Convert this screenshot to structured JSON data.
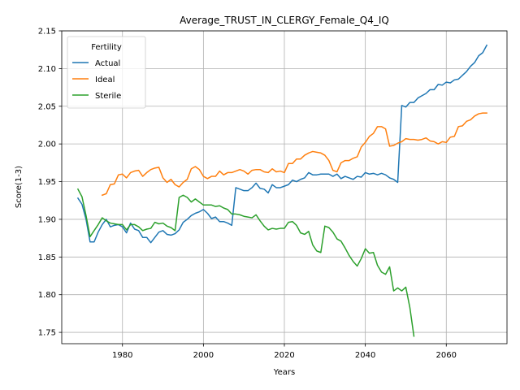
{
  "chart_data": {
    "type": "line",
    "title": "Average_TRUST_IN_CLERGY_Female_Q4_IQ",
    "xlabel": "Years",
    "ylabel": "Score(1-3)",
    "xlim": [
      1965,
      2075
    ],
    "ylim": [
      1.735,
      2.15
    ],
    "xticks": [
      1980,
      2000,
      2020,
      2040,
      2060
    ],
    "yticks": [
      1.75,
      1.8,
      1.85,
      1.9,
      1.95,
      2.0,
      2.05,
      2.1,
      2.15
    ],
    "xtick_labels": [
      "1980",
      "2000",
      "2020",
      "2040",
      "2060"
    ],
    "ytick_labels": [
      "1.75",
      "1.80",
      "1.85",
      "1.90",
      "1.95",
      "2.00",
      "2.05",
      "2.10",
      "2.15"
    ],
    "grid": true,
    "legend": {
      "title": "Fertility",
      "placement": "upper-left"
    },
    "series": [
      {
        "name": "Actual",
        "color": "#1f77b4",
        "points": [
          [
            1969,
            1.928
          ],
          [
            1970,
            1.92
          ],
          [
            1971,
            1.9
          ],
          [
            1972,
            1.87
          ],
          [
            1973,
            1.87
          ],
          [
            1974,
            1.883
          ],
          [
            1975,
            1.893
          ],
          [
            1976,
            1.9
          ],
          [
            1977,
            1.89
          ],
          [
            1978,
            1.892
          ],
          [
            1979,
            1.893
          ],
          [
            1980,
            1.89
          ],
          [
            1981,
            1.882
          ],
          [
            1982,
            1.895
          ],
          [
            1983,
            1.887
          ],
          [
            1984,
            1.885
          ],
          [
            1985,
            1.876
          ],
          [
            1986,
            1.876
          ],
          [
            1987,
            1.869
          ],
          [
            1988,
            1.876
          ],
          [
            1989,
            1.883
          ],
          [
            1990,
            1.885
          ],
          [
            1991,
            1.88
          ],
          [
            1992,
            1.879
          ],
          [
            1993,
            1.881
          ],
          [
            1994,
            1.886
          ],
          [
            1995,
            1.896
          ],
          [
            1996,
            1.9
          ],
          [
            1997,
            1.905
          ],
          [
            1998,
            1.908
          ],
          [
            1999,
            1.91
          ],
          [
            2000,
            1.913
          ],
          [
            2001,
            1.908
          ],
          [
            2002,
            1.901
          ],
          [
            2003,
            1.903
          ],
          [
            2004,
            1.897
          ],
          [
            2005,
            1.897
          ],
          [
            2006,
            1.895
          ],
          [
            2007,
            1.892
          ],
          [
            2008,
            1.942
          ],
          [
            2009,
            1.94
          ],
          [
            2010,
            1.938
          ],
          [
            2011,
            1.938
          ],
          [
            2012,
            1.942
          ],
          [
            2013,
            1.948
          ],
          [
            2014,
            1.941
          ],
          [
            2015,
            1.94
          ],
          [
            2016,
            1.935
          ],
          [
            2017,
            1.946
          ],
          [
            2018,
            1.942
          ],
          [
            2019,
            1.942
          ],
          [
            2020,
            1.944
          ],
          [
            2021,
            1.946
          ],
          [
            2022,
            1.952
          ],
          [
            2023,
            1.95
          ],
          [
            2024,
            1.953
          ],
          [
            2025,
            1.955
          ],
          [
            2026,
            1.962
          ],
          [
            2027,
            1.959
          ],
          [
            2028,
            1.959
          ],
          [
            2029,
            1.96
          ],
          [
            2030,
            1.96
          ],
          [
            2031,
            1.96
          ],
          [
            2032,
            1.957
          ],
          [
            2033,
            1.96
          ],
          [
            2034,
            1.954
          ],
          [
            2035,
            1.957
          ],
          [
            2036,
            1.955
          ],
          [
            2037,
            1.953
          ],
          [
            2038,
            1.957
          ],
          [
            2039,
            1.956
          ],
          [
            2040,
            1.962
          ],
          [
            2041,
            1.96
          ],
          [
            2042,
            1.961
          ],
          [
            2043,
            1.959
          ],
          [
            2044,
            1.961
          ],
          [
            2045,
            1.959
          ],
          [
            2046,
            1.955
          ],
          [
            2047,
            1.953
          ],
          [
            2048,
            1.949
          ],
          [
            2049,
            2.051
          ],
          [
            2050,
            2.049
          ],
          [
            2051,
            2.055
          ],
          [
            2052,
            2.055
          ],
          [
            2053,
            2.061
          ],
          [
            2054,
            2.064
          ],
          [
            2055,
            2.067
          ],
          [
            2056,
            2.072
          ],
          [
            2057,
            2.072
          ],
          [
            2058,
            2.079
          ],
          [
            2059,
            2.078
          ],
          [
            2060,
            2.082
          ],
          [
            2061,
            2.081
          ],
          [
            2062,
            2.085
          ],
          [
            2063,
            2.086
          ],
          [
            2064,
            2.091
          ],
          [
            2065,
            2.096
          ],
          [
            2066,
            2.103
          ],
          [
            2067,
            2.108
          ],
          [
            2068,
            2.117
          ],
          [
            2069,
            2.121
          ],
          [
            2070,
            2.131
          ]
        ]
      },
      {
        "name": "Ideal",
        "color": "#ff7f0e",
        "points": [
          [
            1975,
            1.932
          ],
          [
            1976,
            1.934
          ],
          [
            1977,
            1.946
          ],
          [
            1978,
            1.947
          ],
          [
            1979,
            1.959
          ],
          [
            1980,
            1.96
          ],
          [
            1981,
            1.955
          ],
          [
            1982,
            1.962
          ],
          [
            1983,
            1.964
          ],
          [
            1984,
            1.965
          ],
          [
            1985,
            1.957
          ],
          [
            1986,
            1.962
          ],
          [
            1987,
            1.966
          ],
          [
            1988,
            1.968
          ],
          [
            1989,
            1.969
          ],
          [
            1990,
            1.955
          ],
          [
            1991,
            1.949
          ],
          [
            1992,
            1.953
          ],
          [
            1993,
            1.946
          ],
          [
            1994,
            1.943
          ],
          [
            1995,
            1.949
          ],
          [
            1996,
            1.953
          ],
          [
            1997,
            1.967
          ],
          [
            1998,
            1.97
          ],
          [
            1999,
            1.966
          ],
          [
            2000,
            1.957
          ],
          [
            2001,
            1.954
          ],
          [
            2002,
            1.957
          ],
          [
            2003,
            1.957
          ],
          [
            2004,
            1.964
          ],
          [
            2005,
            1.959
          ],
          [
            2006,
            1.962
          ],
          [
            2007,
            1.962
          ],
          [
            2008,
            1.964
          ],
          [
            2009,
            1.966
          ],
          [
            2010,
            1.964
          ],
          [
            2011,
            1.96
          ],
          [
            2012,
            1.965
          ],
          [
            2013,
            1.966
          ],
          [
            2014,
            1.966
          ],
          [
            2015,
            1.963
          ],
          [
            2016,
            1.962
          ],
          [
            2017,
            1.967
          ],
          [
            2018,
            1.963
          ],
          [
            2019,
            1.964
          ],
          [
            2020,
            1.962
          ],
          [
            2021,
            1.974
          ],
          [
            2022,
            1.974
          ],
          [
            2023,
            1.98
          ],
          [
            2024,
            1.98
          ],
          [
            2025,
            1.985
          ],
          [
            2026,
            1.988
          ],
          [
            2027,
            1.99
          ],
          [
            2028,
            1.989
          ],
          [
            2029,
            1.988
          ],
          [
            2030,
            1.985
          ],
          [
            2031,
            1.978
          ],
          [
            2032,
            1.965
          ],
          [
            2033,
            1.963
          ],
          [
            2034,
            1.975
          ],
          [
            2035,
            1.978
          ],
          [
            2036,
            1.978
          ],
          [
            2037,
            1.981
          ],
          [
            2038,
            1.983
          ],
          [
            2039,
            1.996
          ],
          [
            2040,
            2.002
          ],
          [
            2041,
            2.01
          ],
          [
            2042,
            2.014
          ],
          [
            2043,
            2.023
          ],
          [
            2044,
            2.023
          ],
          [
            2045,
            2.02
          ],
          [
            2046,
            1.997
          ],
          [
            2047,
            1.998
          ],
          [
            2048,
            2.001
          ],
          [
            2049,
            2.003
          ],
          [
            2050,
            2.007
          ],
          [
            2051,
            2.006
          ],
          [
            2052,
            2.006
          ],
          [
            2053,
            2.005
          ],
          [
            2054,
            2.006
          ],
          [
            2055,
            2.008
          ],
          [
            2056,
            2.004
          ],
          [
            2057,
            2.003
          ],
          [
            2058,
            2.0
          ],
          [
            2059,
            2.003
          ],
          [
            2060,
            2.002
          ],
          [
            2061,
            2.009
          ],
          [
            2062,
            2.01
          ],
          [
            2063,
            2.023
          ],
          [
            2064,
            2.024
          ],
          [
            2065,
            2.03
          ],
          [
            2066,
            2.032
          ],
          [
            2067,
            2.037
          ],
          [
            2068,
            2.04
          ],
          [
            2069,
            2.041
          ],
          [
            2070,
            2.041
          ]
        ]
      },
      {
        "name": "Sterile",
        "color": "#2ca02c",
        "points": [
          [
            1969,
            1.94
          ],
          [
            1970,
            1.93
          ],
          [
            1971,
            1.905
          ],
          [
            1972,
            1.877
          ],
          [
            1973,
            1.885
          ],
          [
            1974,
            1.893
          ],
          [
            1975,
            1.902
          ],
          [
            1976,
            1.898
          ],
          [
            1977,
            1.895
          ],
          [
            1978,
            1.894
          ],
          [
            1979,
            1.893
          ],
          [
            1980,
            1.893
          ],
          [
            1981,
            1.886
          ],
          [
            1982,
            1.893
          ],
          [
            1983,
            1.893
          ],
          [
            1984,
            1.89
          ],
          [
            1985,
            1.885
          ],
          [
            1986,
            1.887
          ],
          [
            1987,
            1.888
          ],
          [
            1988,
            1.896
          ],
          [
            1989,
            1.894
          ],
          [
            1990,
            1.895
          ],
          [
            1991,
            1.891
          ],
          [
            1992,
            1.889
          ],
          [
            1993,
            1.885
          ],
          [
            1994,
            1.929
          ],
          [
            1995,
            1.932
          ],
          [
            1996,
            1.929
          ],
          [
            1997,
            1.923
          ],
          [
            1998,
            1.927
          ],
          [
            1999,
            1.923
          ],
          [
            2000,
            1.919
          ],
          [
            2001,
            1.919
          ],
          [
            2002,
            1.919
          ],
          [
            2003,
            1.917
          ],
          [
            2004,
            1.918
          ],
          [
            2005,
            1.915
          ],
          [
            2006,
            1.913
          ],
          [
            2007,
            1.907
          ],
          [
            2008,
            1.907
          ],
          [
            2009,
            1.906
          ],
          [
            2010,
            1.904
          ],
          [
            2011,
            1.903
          ],
          [
            2012,
            1.902
          ],
          [
            2013,
            1.906
          ],
          [
            2014,
            1.898
          ],
          [
            2015,
            1.891
          ],
          [
            2016,
            1.886
          ],
          [
            2017,
            1.888
          ],
          [
            2018,
            1.887
          ],
          [
            2019,
            1.888
          ],
          [
            2020,
            1.888
          ],
          [
            2021,
            1.896
          ],
          [
            2022,
            1.897
          ],
          [
            2023,
            1.892
          ],
          [
            2024,
            1.882
          ],
          [
            2025,
            1.88
          ],
          [
            2026,
            1.884
          ],
          [
            2027,
            1.866
          ],
          [
            2028,
            1.858
          ],
          [
            2029,
            1.856
          ],
          [
            2030,
            1.891
          ],
          [
            2031,
            1.889
          ],
          [
            2032,
            1.883
          ],
          [
            2033,
            1.874
          ],
          [
            2034,
            1.871
          ],
          [
            2035,
            1.862
          ],
          [
            2036,
            1.852
          ],
          [
            2037,
            1.844
          ],
          [
            2038,
            1.838
          ],
          [
            2039,
            1.848
          ],
          [
            2040,
            1.861
          ],
          [
            2041,
            1.855
          ],
          [
            2042,
            1.856
          ],
          [
            2043,
            1.839
          ],
          [
            2044,
            1.83
          ],
          [
            2045,
            1.827
          ],
          [
            2046,
            1.837
          ],
          [
            2047,
            1.805
          ],
          [
            2048,
            1.809
          ],
          [
            2049,
            1.805
          ],
          [
            2050,
            1.81
          ],
          [
            2051,
            1.783
          ],
          [
            2052,
            1.745
          ]
        ]
      }
    ]
  }
}
